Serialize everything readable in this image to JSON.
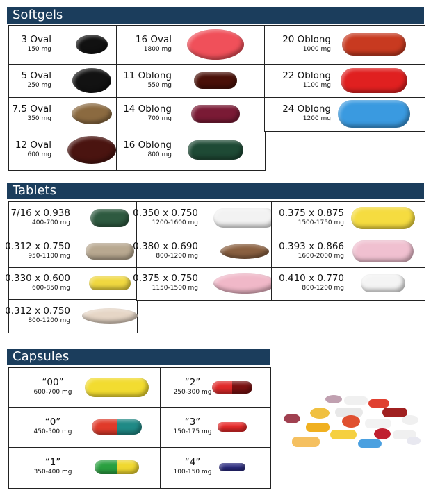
{
  "sections": [
    {
      "title": "Softgels",
      "items": [
        {
          "label": "3 Oval",
          "dose": "150 mg",
          "color": "#111111"
        },
        {
          "label": "5 Oval",
          "dose": "250 mg",
          "color": "#121212"
        },
        {
          "label": "7.5 Oval",
          "dose": "350 mg",
          "color": "#8b6a40"
        },
        {
          "label": "12 Oval",
          "dose": "600 mg",
          "color": "#4a1410"
        },
        {
          "label": "16 Oval",
          "dose": "1800 mg",
          "color": "#f0505a"
        },
        {
          "label": "11 Oblong",
          "dose": "550 mg",
          "color": "#4a1008"
        },
        {
          "label": "14 Oblong",
          "dose": "700 mg",
          "color": "#7a1a35"
        },
        {
          "label": "16 Oblong",
          "dose": "800 mg",
          "color": "#1e4a35"
        },
        {
          "label": "20 Oblong",
          "dose": "1000 mg",
          "color": "#c83a20"
        },
        {
          "label": "22 Oblong",
          "dose": "1100 mg",
          "color": "#e02020"
        },
        {
          "label": "24 Oblong",
          "dose": "1200 mg",
          "color": "#3a9ae0"
        }
      ]
    },
    {
      "title": "Tablets",
      "items": [
        {
          "label": "7/16 x 0.938",
          "dose": "400-700 mg",
          "color": "#2e5a40"
        },
        {
          "label": "0.312 x 0.750",
          "dose": "950-1100 mg",
          "color": "#b8a890"
        },
        {
          "label": "0.330 x 0.600",
          "dose": "600-850 mg",
          "color": "#f0d840"
        },
        {
          "label": "0.312 x 0.750",
          "dose": "800-1200 mg",
          "color": "#e6d6c6"
        },
        {
          "label": "0.350 x 0.750",
          "dose": "1200-1600 mg",
          "color": "#f2f2f2"
        },
        {
          "label": "0.380 x 0.690",
          "dose": "800-1200 mg",
          "color": "#8a6040"
        },
        {
          "label": "0.375 x 0.750",
          "dose": "1150-1500 mg",
          "color": "#f0b8c8"
        },
        {
          "label": "0.375 x 0.875",
          "dose": "1500-1750 mg",
          "color": "#f5dc40"
        },
        {
          "label": "0.393 x 0.866",
          "dose": "1600-2000 mg",
          "color": "#f0c0d0"
        },
        {
          "label": "0.410 x 0.770",
          "dose": "800-1200 mg",
          "color": "#f4f4f4"
        }
      ]
    },
    {
      "title": "Capsules",
      "items": [
        {
          "label": "“00”",
          "dose": "600-700 mg",
          "color": "#f2dc30"
        },
        {
          "label": "“0”",
          "dose": "450-500 mg",
          "color": "#e03a2a #1f8a86"
        },
        {
          "label": "“1”",
          "dose": "350-400 mg",
          "color": "#2aa040 #f0d830"
        },
        {
          "label": "“2”",
          "dose": "250-300 mg",
          "color": "#e02828 #7a1010"
        },
        {
          "label": "“3”",
          "dose": "150-175 mg",
          "color": "#e82828"
        },
        {
          "label": "“4”",
          "dose": "100-150 mg",
          "color": "#2a2a80"
        }
      ]
    }
  ]
}
